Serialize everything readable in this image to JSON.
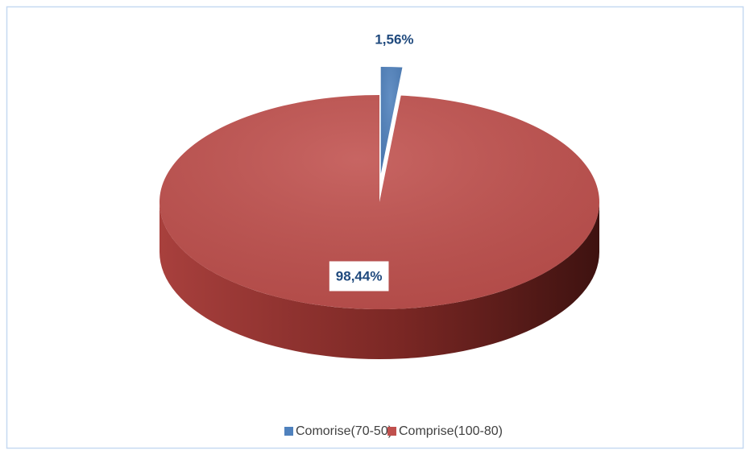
{
  "chart_data": {
    "type": "pie3d",
    "categories": [
      "Comorise(70-50)",
      "Comprise(100-80)"
    ],
    "values": [
      1.56,
      98.44
    ],
    "value_labels": [
      "1,56%",
      "98,44%"
    ],
    "colors": [
      "#4f81bd",
      "#c0504d"
    ],
    "legend": "bottom"
  }
}
